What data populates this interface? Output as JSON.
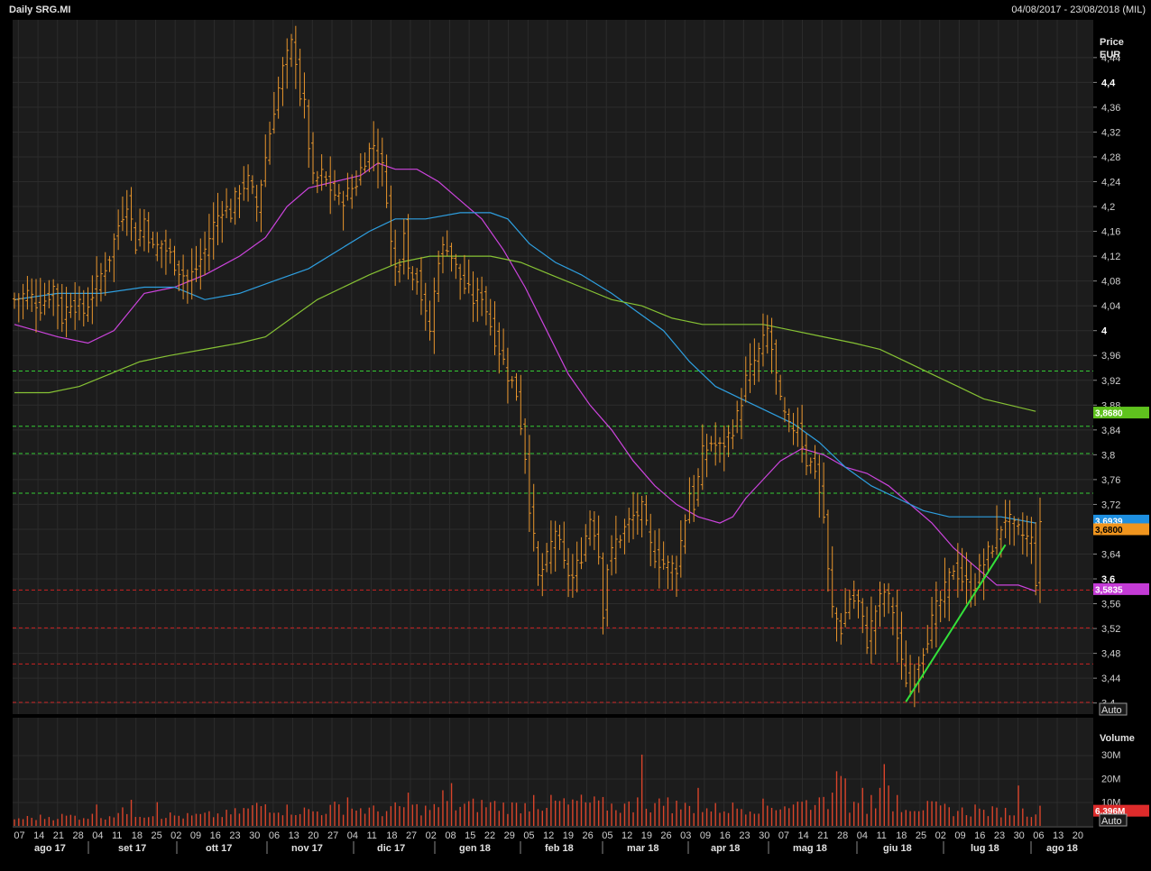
{
  "header": {
    "title": "Daily SRG.MI",
    "range": "04/08/2017 - 23/08/2018 (MIL)"
  },
  "colors": {
    "background": "#000000",
    "plot_background": "#1c1c1c",
    "grid": "#2c2c2c",
    "price_bars": "#e8952c",
    "volume_bars": "#d9442a",
    "ma_short": "#cc44dd",
    "ma_mid": "#2e9fe0",
    "ma_long": "#86c234",
    "support_line": "#cc2222",
    "resistance_line": "#33cc33",
    "trendline": "#33e03a"
  },
  "price_panel": {
    "axis_title_line1": "Price",
    "axis_title_line2": "EUR",
    "ticks": [
      "4,44",
      "4,4",
      "4,36",
      "4,32",
      "4,28",
      "4,24",
      "4,2",
      "4,16",
      "4,12",
      "4,08",
      "4,04",
      "4",
      "3,96",
      "3,92",
      "3,88",
      "3,84",
      "3,8",
      "3,76",
      "3,72",
      "3,68",
      "3,64",
      "3,6",
      "3,56",
      "3,52",
      "3,48",
      "3,44",
      "3,4"
    ],
    "bold_ticks": [
      "4,4",
      "4",
      "3,6"
    ],
    "auto_label": "Auto",
    "ylim": [
      3.385,
      4.495
    ],
    "tags": [
      {
        "label": "3,8680",
        "value": 3.868,
        "color": "#5fc21e",
        "text_color": "#ffffff"
      },
      {
        "label": "3,6939",
        "value": 3.6939,
        "color": "#1e8fe0",
        "text_color": "#ffffff"
      },
      {
        "label": "3,6800",
        "value": 3.68,
        "color": "#f0951e",
        "text_color": "#000000"
      },
      {
        "label": "3,5835",
        "value": 3.5835,
        "color": "#c43bd6",
        "text_color": "#ffffff"
      }
    ]
  },
  "volume_panel": {
    "axis_title": "Volume",
    "ticks": [
      "30M",
      "20M",
      "10M"
    ],
    "tag": {
      "label": "6,396M",
      "value": 6.396,
      "color": "#dd2b2b"
    },
    "auto_label": "Auto",
    "ylim": [
      0,
      44
    ]
  },
  "x_axis": {
    "days": [
      "07",
      "14",
      "21",
      "28",
      "04",
      "11",
      "18",
      "25",
      "02",
      "09",
      "16",
      "23",
      "30",
      "06",
      "13",
      "20",
      "27",
      "04",
      "11",
      "18",
      "27",
      "02",
      "08",
      "15",
      "22",
      "29",
      "05",
      "12",
      "19",
      "26",
      "05",
      "12",
      "19",
      "26",
      "03",
      "09",
      "16",
      "23",
      "30",
      "07",
      "14",
      "21",
      "28",
      "04",
      "11",
      "18",
      "25",
      "02",
      "09",
      "16",
      "23",
      "30",
      "06",
      "13",
      "20"
    ],
    "months": [
      "ago 17",
      "set 17",
      "ott 17",
      "nov 17",
      "dic 17",
      "gen 18",
      "feb 18",
      "mar 18",
      "apr 18",
      "mag 18",
      "giu 18",
      "lug 18",
      "ago 18"
    ]
  },
  "chart_data": {
    "type": "ohlc",
    "title": "Daily SRG.MI",
    "date_range": "04/08/2017 - 23/08/2018",
    "ylabel": "Price EUR",
    "ylim": [
      3.385,
      4.495
    ],
    "price_path": [
      [
        0,
        4.05
      ],
      [
        3,
        4.06
      ],
      [
        6,
        4.04
      ],
      [
        9,
        4.07
      ],
      [
        11,
        4.02
      ],
      [
        13,
        4.05
      ],
      [
        16,
        4.03
      ],
      [
        18,
        4.06
      ],
      [
        20,
        4.09
      ],
      [
        22,
        4.12
      ],
      [
        24,
        4.17
      ],
      [
        26,
        4.21
      ],
      [
        28,
        4.14
      ],
      [
        30,
        4.18
      ],
      [
        32,
        4.13
      ],
      [
        34,
        4.14
      ],
      [
        36,
        4.12
      ],
      [
        38,
        4.1
      ],
      [
        40,
        4.08
      ],
      [
        42,
        4.1
      ],
      [
        44,
        4.13
      ],
      [
        46,
        4.17
      ],
      [
        48,
        4.2
      ],
      [
        50,
        4.19
      ],
      [
        52,
        4.23
      ],
      [
        54,
        4.24
      ],
      [
        56,
        4.2
      ],
      [
        58,
        4.28
      ],
      [
        60,
        4.36
      ],
      [
        62,
        4.42
      ],
      [
        63,
        4.44
      ],
      [
        64,
        4.46
      ],
      [
        65,
        4.44
      ],
      [
        66,
        4.38
      ],
      [
        67,
        4.36
      ],
      [
        68,
        4.3
      ],
      [
        69,
        4.24
      ],
      [
        71,
        4.25
      ],
      [
        73,
        4.23
      ],
      [
        75,
        4.21
      ],
      [
        77,
        4.22
      ],
      [
        79,
        4.24
      ],
      [
        81,
        4.28
      ],
      [
        83,
        4.3
      ],
      [
        85,
        4.26
      ],
      [
        86,
        4.22
      ],
      [
        87,
        4.14
      ],
      [
        88,
        4.1
      ],
      [
        89,
        4.12
      ],
      [
        90,
        4.17
      ],
      [
        91,
        4.1
      ],
      [
        93,
        4.09
      ],
      [
        95,
        4.02
      ],
      [
        96,
        4.0
      ],
      [
        98,
        4.12
      ],
      [
        100,
        4.14
      ],
      [
        102,
        4.1
      ],
      [
        104,
        4.07
      ],
      [
        106,
        4.05
      ],
      [
        108,
        4.06
      ],
      [
        110,
        4.01
      ],
      [
        112,
        3.97
      ],
      [
        114,
        3.93
      ],
      [
        116,
        3.9
      ],
      [
        118,
        3.8
      ],
      [
        119,
        3.72
      ],
      [
        120,
        3.66
      ],
      [
        121,
        3.6
      ],
      [
        123,
        3.63
      ],
      [
        125,
        3.68
      ],
      [
        127,
        3.62
      ],
      [
        129,
        3.6
      ],
      [
        131,
        3.64
      ],
      [
        133,
        3.7
      ],
      [
        134,
        3.68
      ],
      [
        135,
        3.64
      ],
      [
        136,
        3.55
      ],
      [
        137,
        3.62
      ],
      [
        139,
        3.66
      ],
      [
        141,
        3.68
      ],
      [
        143,
        3.7
      ],
      [
        145,
        3.71
      ],
      [
        147,
        3.65
      ],
      [
        149,
        3.63
      ],
      [
        151,
        3.62
      ],
      [
        153,
        3.62
      ],
      [
        155,
        3.7
      ],
      [
        156,
        3.74
      ],
      [
        157,
        3.72
      ],
      [
        159,
        3.8
      ],
      [
        161,
        3.82
      ],
      [
        163,
        3.81
      ],
      [
        165,
        3.83
      ],
      [
        167,
        3.86
      ],
      [
        169,
        3.92
      ],
      [
        171,
        3.95
      ],
      [
        173,
        3.98
      ],
      [
        174,
        4.0
      ],
      [
        175,
        3.97
      ],
      [
        177,
        3.88
      ],
      [
        179,
        3.84
      ],
      [
        181,
        3.85
      ],
      [
        183,
        3.79
      ],
      [
        185,
        3.78
      ],
      [
        187,
        3.7
      ],
      [
        188,
        3.61
      ],
      [
        189,
        3.55
      ],
      [
        191,
        3.52
      ],
      [
        193,
        3.57
      ],
      [
        195,
        3.56
      ],
      [
        197,
        3.5
      ],
      [
        199,
        3.55
      ],
      [
        201,
        3.58
      ],
      [
        203,
        3.55
      ],
      [
        205,
        3.46
      ],
      [
        207,
        3.42
      ],
      [
        209,
        3.47
      ],
      [
        211,
        3.51
      ],
      [
        213,
        3.55
      ],
      [
        215,
        3.58
      ],
      [
        217,
        3.62
      ],
      [
        219,
        3.6
      ],
      [
        221,
        3.58
      ],
      [
        223,
        3.61
      ],
      [
        225,
        3.64
      ],
      [
        227,
        3.67
      ],
      [
        229,
        3.7
      ],
      [
        231,
        3.68
      ],
      [
        233,
        3.67
      ],
      [
        235,
        3.66
      ],
      [
        236,
        3.6
      ],
      [
        237,
        3.68
      ]
    ],
    "volume_path": [
      [
        0,
        3
      ],
      [
        10,
        4
      ],
      [
        20,
        4
      ],
      [
        26,
        6
      ],
      [
        30,
        5
      ],
      [
        40,
        4
      ],
      [
        50,
        5
      ],
      [
        54,
        7
      ],
      [
        58,
        9
      ],
      [
        62,
        7
      ],
      [
        70,
        6
      ],
      [
        75,
        8
      ],
      [
        80,
        7
      ],
      [
        85,
        6
      ],
      [
        90,
        8
      ],
      [
        95,
        7
      ],
      [
        100,
        8
      ],
      [
        110,
        9
      ],
      [
        115,
        8
      ],
      [
        120,
        9
      ],
      [
        130,
        10
      ],
      [
        140,
        8
      ],
      [
        150,
        9
      ],
      [
        160,
        7
      ],
      [
        170,
        8
      ],
      [
        180,
        9
      ],
      [
        185,
        10
      ],
      [
        190,
        11
      ],
      [
        195,
        7
      ],
      [
        200,
        7
      ],
      [
        205,
        9
      ],
      [
        210,
        8
      ],
      [
        220,
        6
      ],
      [
        230,
        6
      ],
      [
        235,
        6
      ],
      [
        237,
        6.396
      ]
    ],
    "volume_spikes": [
      [
        19,
        9
      ],
      [
        27,
        11
      ],
      [
        33,
        10
      ],
      [
        77,
        12
      ],
      [
        91,
        14
      ],
      [
        99,
        15
      ],
      [
        101,
        18
      ],
      [
        120,
        13
      ],
      [
        128,
        9
      ],
      [
        144,
        12
      ],
      [
        145,
        30
      ],
      [
        151,
        12
      ],
      [
        158,
        16
      ],
      [
        180,
        9
      ],
      [
        186,
        12
      ],
      [
        189,
        14
      ],
      [
        190,
        23
      ],
      [
        191,
        21
      ],
      [
        192,
        20
      ],
      [
        196,
        16
      ],
      [
        198,
        13
      ],
      [
        200,
        16
      ],
      [
        201,
        26
      ],
      [
        202,
        17
      ],
      [
        204,
        13
      ],
      [
        222,
        9
      ],
      [
        232,
        17
      ]
    ],
    "moving_averages": [
      {
        "name": "ma_short",
        "color": "#cc44dd",
        "points": [
          [
            0,
            4.01
          ],
          [
            10,
            3.99
          ],
          [
            17,
            3.98
          ],
          [
            23,
            4.0
          ],
          [
            30,
            4.06
          ],
          [
            37,
            4.07
          ],
          [
            44,
            4.09
          ],
          [
            52,
            4.12
          ],
          [
            58,
            4.15
          ],
          [
            63,
            4.2
          ],
          [
            68,
            4.23
          ],
          [
            74,
            4.24
          ],
          [
            80,
            4.25
          ],
          [
            84,
            4.27
          ],
          [
            88,
            4.26
          ],
          [
            93,
            4.26
          ],
          [
            98,
            4.24
          ],
          [
            103,
            4.21
          ],
          [
            108,
            4.18
          ],
          [
            113,
            4.13
          ],
          [
            118,
            4.07
          ],
          [
            123,
            4.0
          ],
          [
            128,
            3.93
          ],
          [
            133,
            3.88
          ],
          [
            138,
            3.84
          ],
          [
            143,
            3.79
          ],
          [
            148,
            3.75
          ],
          [
            153,
            3.72
          ],
          [
            158,
            3.7
          ],
          [
            163,
            3.69
          ],
          [
            166,
            3.7
          ],
          [
            169,
            3.73
          ],
          [
            173,
            3.76
          ],
          [
            177,
            3.79
          ],
          [
            182,
            3.81
          ],
          [
            187,
            3.8
          ],
          [
            192,
            3.78
          ],
          [
            197,
            3.77
          ],
          [
            202,
            3.75
          ],
          [
            207,
            3.72
          ],
          [
            212,
            3.69
          ],
          [
            217,
            3.65
          ],
          [
            222,
            3.62
          ],
          [
            227,
            3.59
          ],
          [
            232,
            3.59
          ],
          [
            236,
            3.58
          ]
        ]
      },
      {
        "name": "ma_mid",
        "color": "#2e9fe0",
        "points": [
          [
            0,
            4.05
          ],
          [
            10,
            4.06
          ],
          [
            20,
            4.06
          ],
          [
            30,
            4.07
          ],
          [
            37,
            4.07
          ],
          [
            44,
            4.05
          ],
          [
            52,
            4.06
          ],
          [
            60,
            4.08
          ],
          [
            68,
            4.1
          ],
          [
            75,
            4.13
          ],
          [
            82,
            4.16
          ],
          [
            88,
            4.18
          ],
          [
            95,
            4.18
          ],
          [
            103,
            4.19
          ],
          [
            110,
            4.19
          ],
          [
            114,
            4.18
          ],
          [
            119,
            4.14
          ],
          [
            125,
            4.11
          ],
          [
            131,
            4.09
          ],
          [
            138,
            4.06
          ],
          [
            144,
            4.03
          ],
          [
            150,
            4.0
          ],
          [
            156,
            3.95
          ],
          [
            162,
            3.91
          ],
          [
            168,
            3.89
          ],
          [
            174,
            3.87
          ],
          [
            180,
            3.85
          ],
          [
            186,
            3.82
          ],
          [
            192,
            3.78
          ],
          [
            198,
            3.75
          ],
          [
            204,
            3.73
          ],
          [
            210,
            3.71
          ],
          [
            216,
            3.7
          ],
          [
            222,
            3.7
          ],
          [
            228,
            3.7
          ],
          [
            236,
            3.69
          ]
        ]
      },
      {
        "name": "ma_long",
        "color": "#86c234",
        "points": [
          [
            0,
            3.9
          ],
          [
            8,
            3.9
          ],
          [
            15,
            3.91
          ],
          [
            22,
            3.93
          ],
          [
            29,
            3.95
          ],
          [
            36,
            3.96
          ],
          [
            44,
            3.97
          ],
          [
            52,
            3.98
          ],
          [
            58,
            3.99
          ],
          [
            64,
            4.02
          ],
          [
            70,
            4.05
          ],
          [
            76,
            4.07
          ],
          [
            82,
            4.09
          ],
          [
            89,
            4.11
          ],
          [
            96,
            4.12
          ],
          [
            103,
            4.12
          ],
          [
            110,
            4.12
          ],
          [
            117,
            4.11
          ],
          [
            124,
            4.09
          ],
          [
            131,
            4.07
          ],
          [
            138,
            4.05
          ],
          [
            145,
            4.04
          ],
          [
            152,
            4.02
          ],
          [
            159,
            4.01
          ],
          [
            166,
            4.01
          ],
          [
            173,
            4.01
          ],
          [
            180,
            4.0
          ],
          [
            187,
            3.99
          ],
          [
            194,
            3.98
          ],
          [
            200,
            3.97
          ],
          [
            206,
            3.95
          ],
          [
            212,
            3.93
          ],
          [
            218,
            3.91
          ],
          [
            224,
            3.89
          ],
          [
            230,
            3.88
          ],
          [
            236,
            3.87
          ]
        ]
      }
    ],
    "horizontal_lines": [
      {
        "value": 3.935,
        "color": "#33cc33",
        "style": "dashed"
      },
      {
        "value": 3.846,
        "color": "#33cc33",
        "style": "dashed"
      },
      {
        "value": 3.802,
        "color": "#33cc33",
        "style": "dashed"
      },
      {
        "value": 3.738,
        "color": "#33cc33",
        "style": "dashed"
      },
      {
        "value": 3.582,
        "color": "#cc2222",
        "style": "dashed"
      },
      {
        "value": 3.521,
        "color": "#cc2222",
        "style": "dashed"
      },
      {
        "value": 3.463,
        "color": "#cc2222",
        "style": "dashed"
      },
      {
        "value": 3.401,
        "color": "#cc2222",
        "style": "dashed"
      }
    ],
    "trendline": {
      "from": [
        206,
        3.402
      ],
      "to": [
        229,
        3.655
      ],
      "color": "#33e03a"
    }
  }
}
